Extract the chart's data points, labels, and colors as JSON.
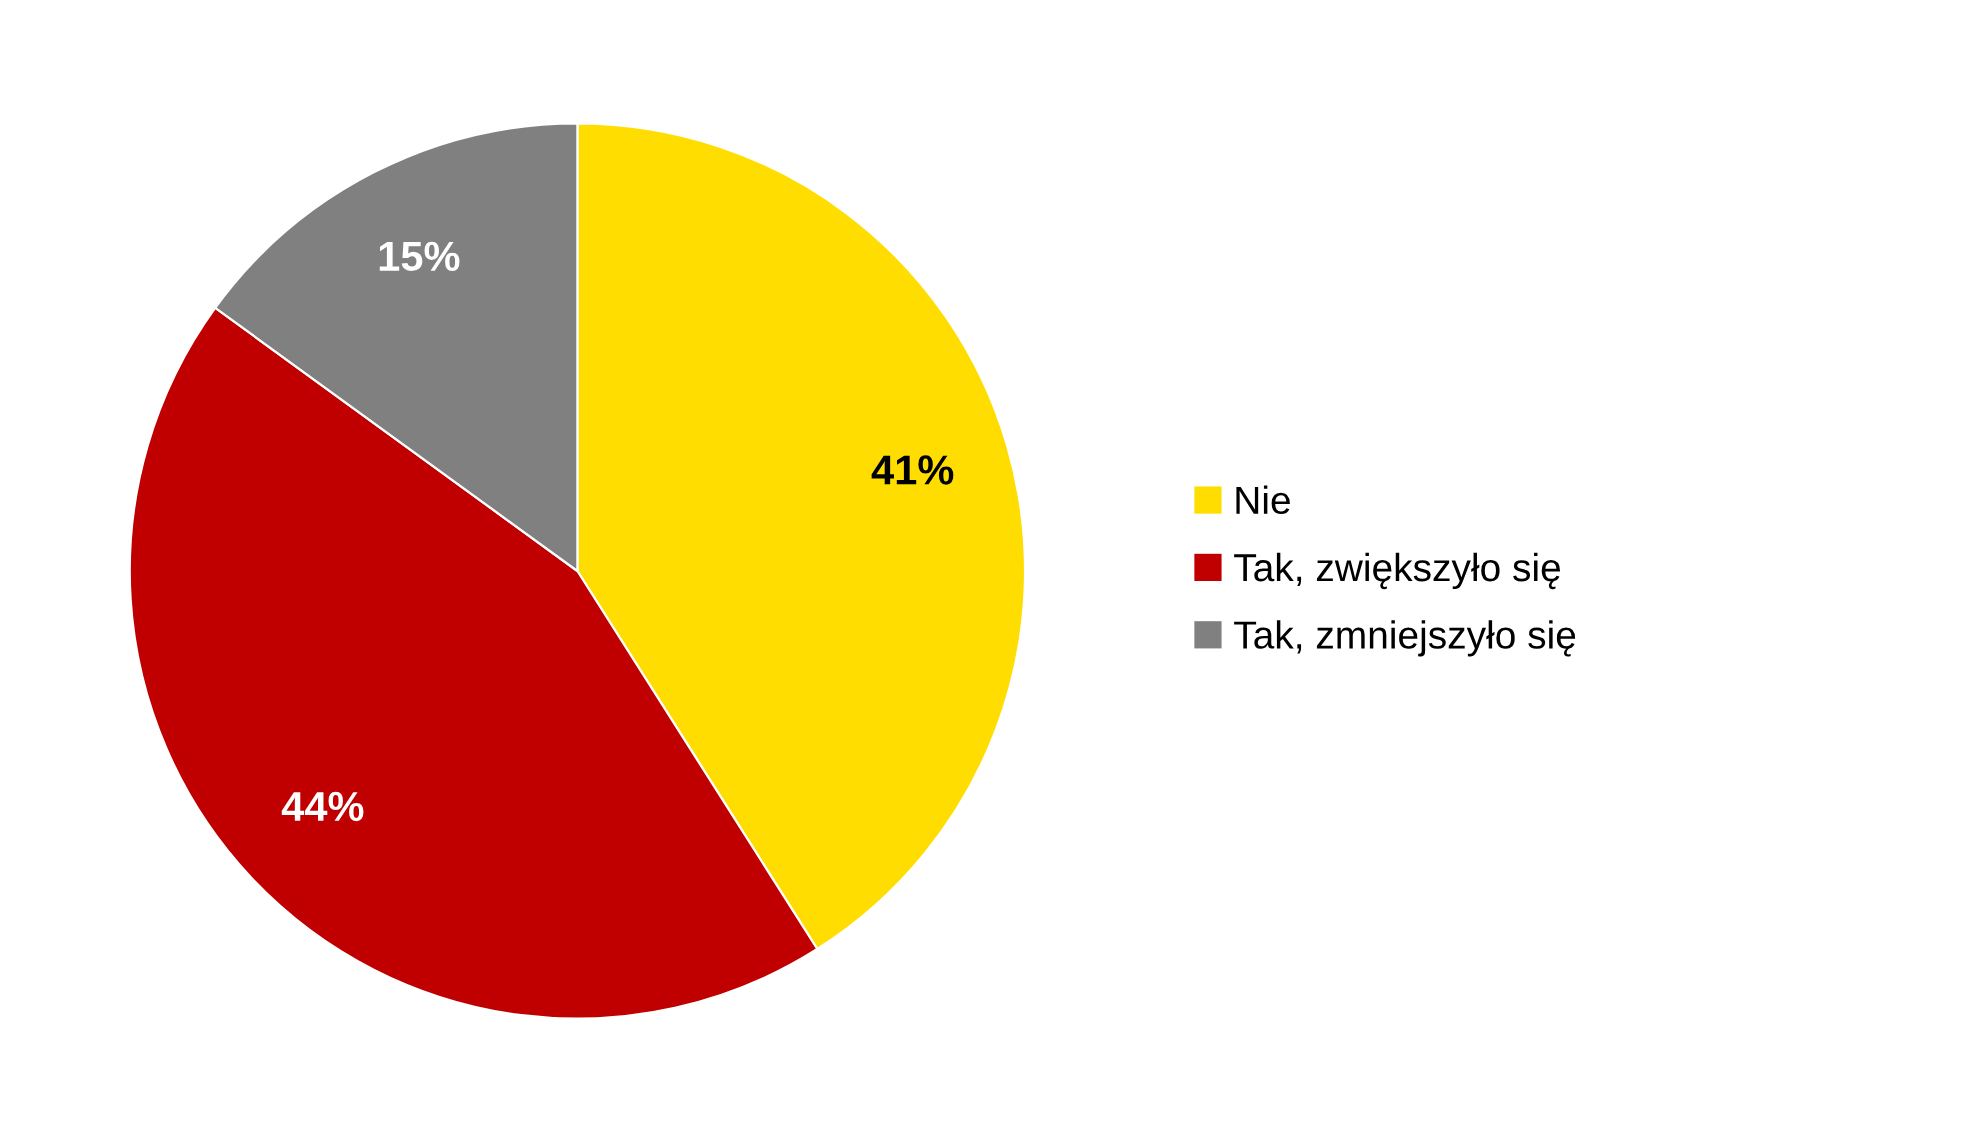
{
  "chart_data": {
    "type": "pie",
    "categories": [
      "Nie",
      "Tak, zwiększyło się",
      "Tak, zmniejszyło się"
    ],
    "values": [
      41,
      44,
      15
    ],
    "colors": [
      "#ffdd00",
      "#c00000",
      "#808080"
    ],
    "value_labels": [
      "41%",
      "44%",
      "15%"
    ],
    "legend": "right"
  }
}
